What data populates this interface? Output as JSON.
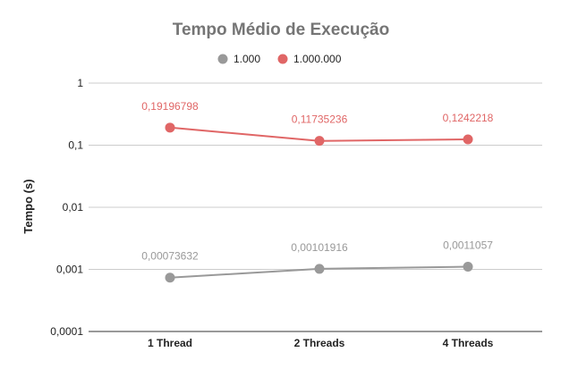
{
  "chart_data": {
    "type": "line",
    "title": "Tempo Médio de Execução",
    "xlabel": "",
    "ylabel": "Tempo (s)",
    "yscale": "log",
    "ylim": [
      0.0001,
      1
    ],
    "yticks": [
      "0,0001",
      "0,001",
      "0,01",
      "0,1",
      "1"
    ],
    "categories": [
      "1 Thread",
      "2 Threads",
      "4 Threads"
    ],
    "legend_position": "top",
    "grid": true,
    "series": [
      {
        "name": "1.000",
        "color": "#999999",
        "values": [
          0.00073632,
          0.00101916,
          0.0011057
        ],
        "labels": [
          "0,00073632",
          "0,00101916",
          "0,0011057"
        ]
      },
      {
        "name": "1.000.000",
        "color": "#e06666",
        "values": [
          0.19196798,
          0.11735236,
          0.1242218
        ],
        "labels": [
          "0,19196798",
          "0,11735236",
          "0,1242218"
        ]
      }
    ]
  }
}
